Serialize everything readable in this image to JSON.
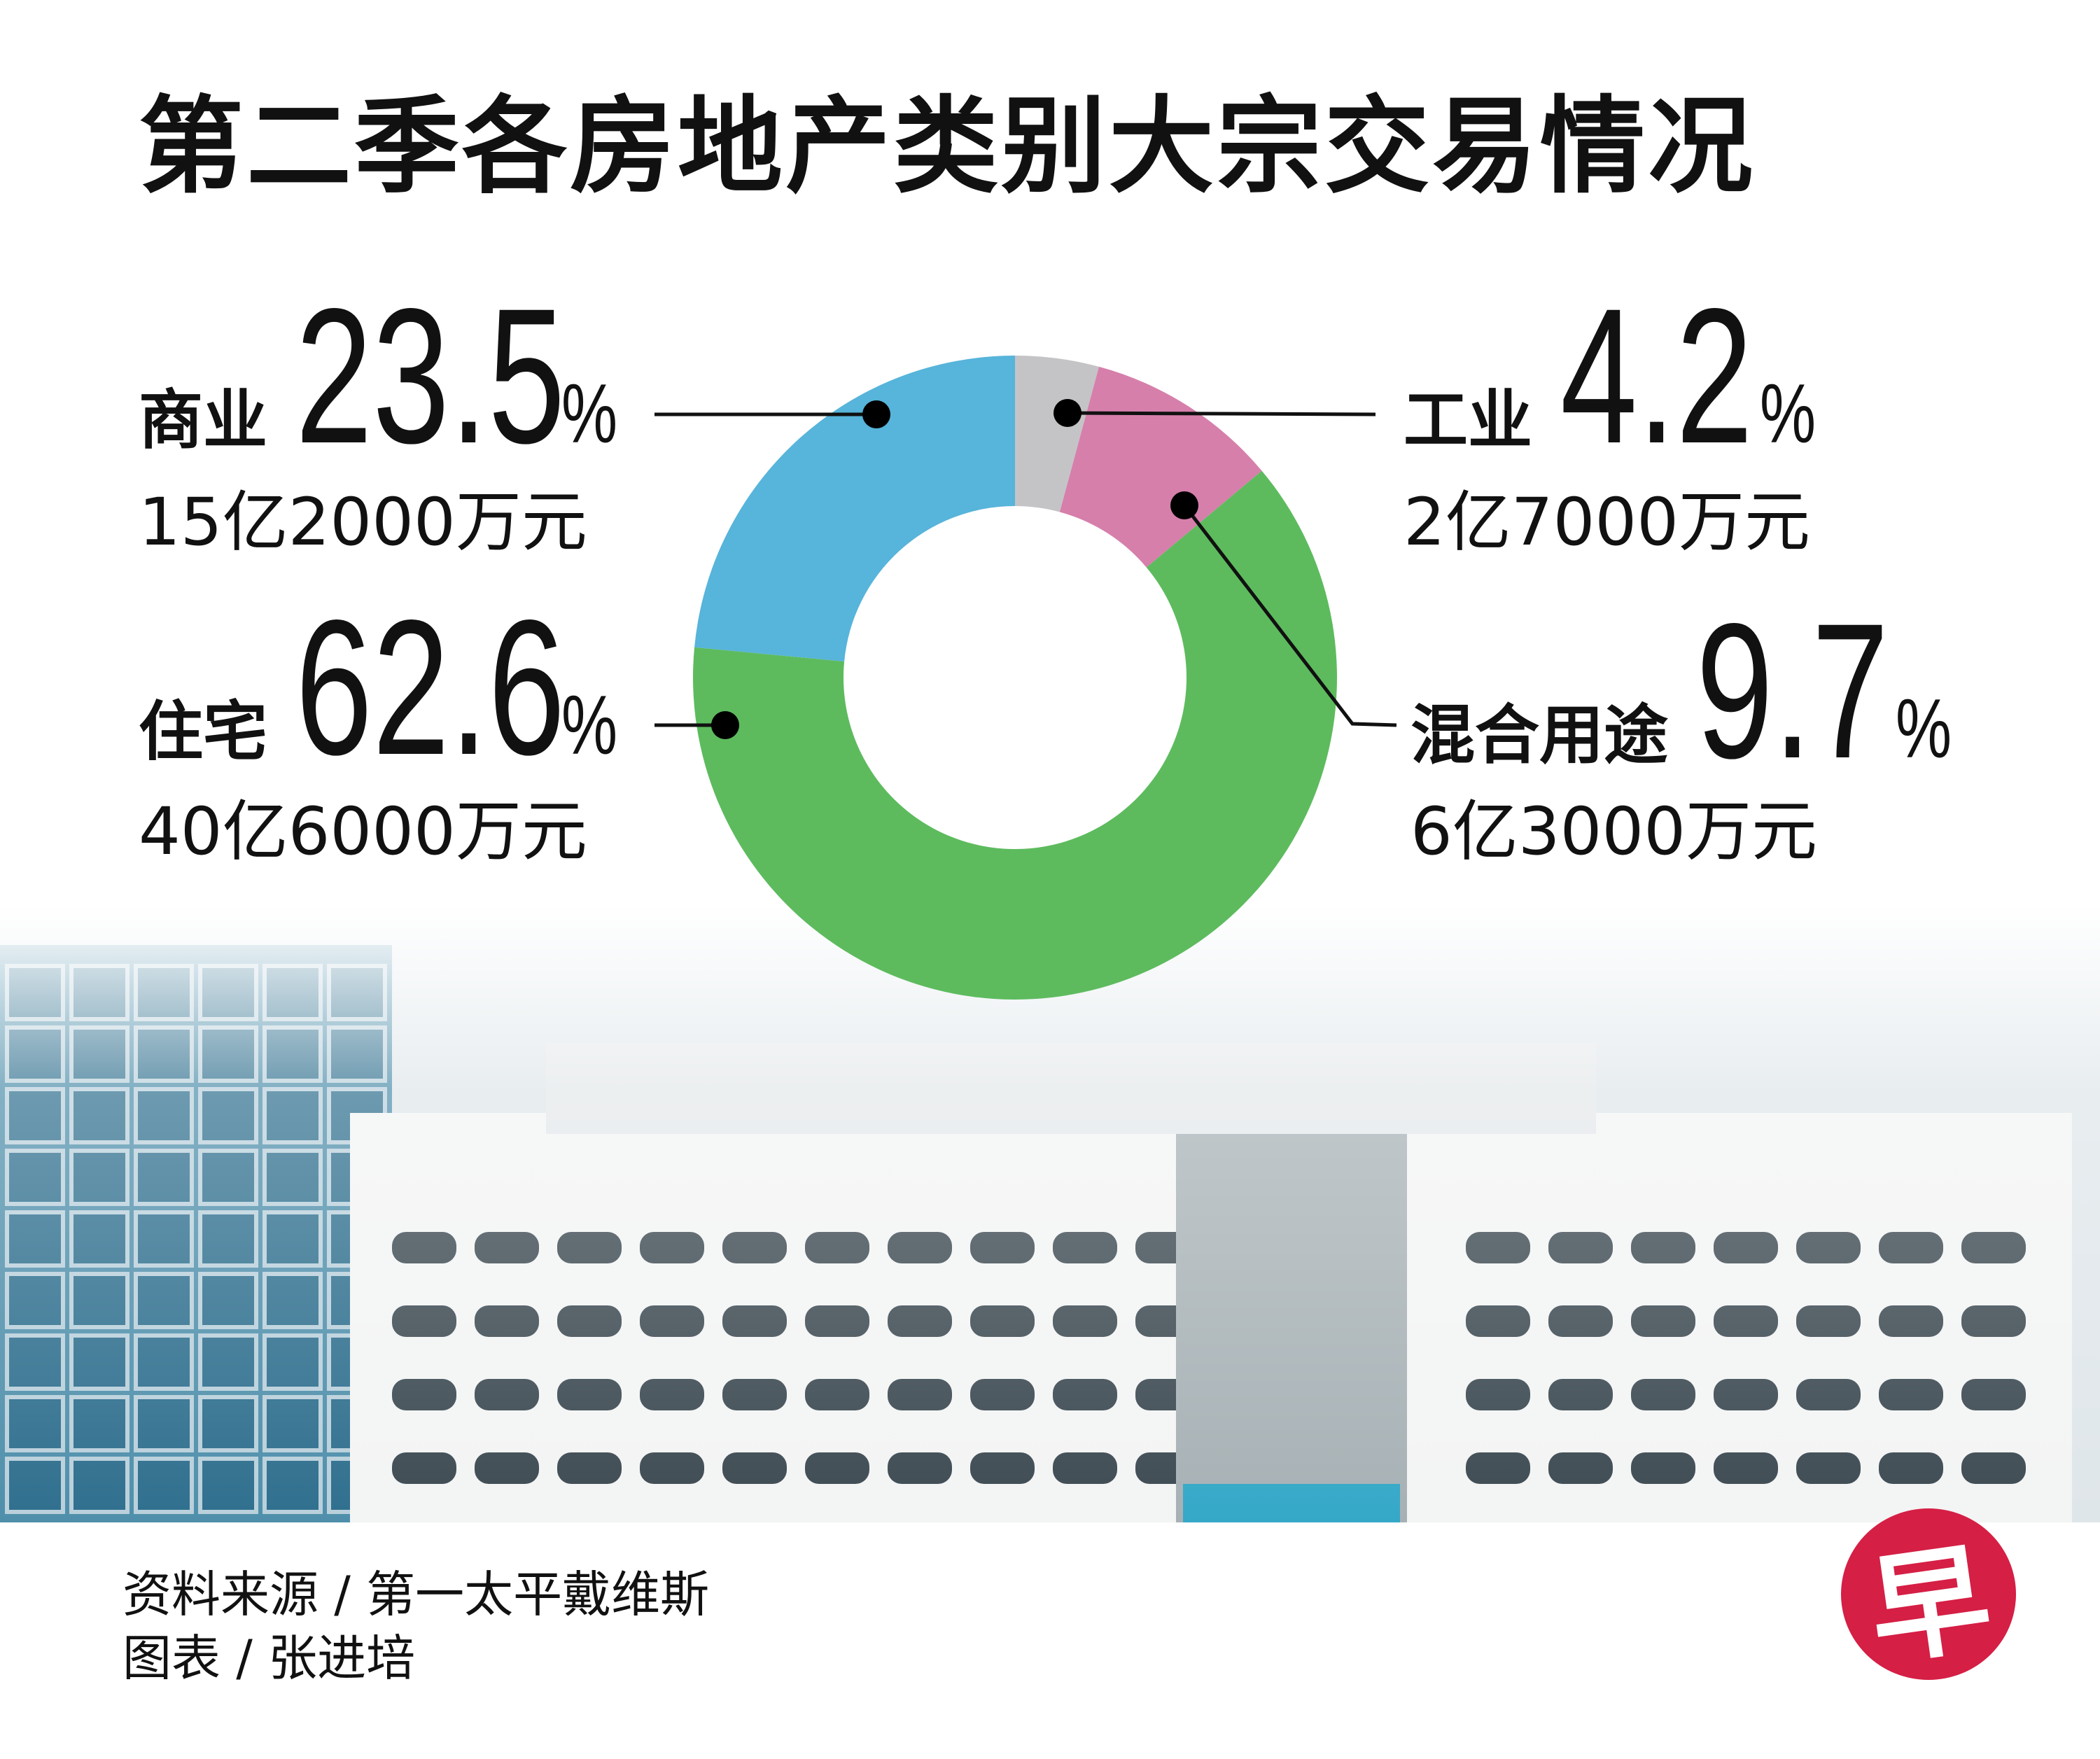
{
  "title": "第二季各房地产类别大宗交易情况",
  "chart_data": {
    "type": "pie",
    "variant": "donut",
    "title": "第二季各房地产类别大宗交易情况",
    "slices": [
      {
        "name": "工业",
        "value": 4.2,
        "label": "4.2",
        "amount": "2亿7000万元",
        "color": "#c4c4c6"
      },
      {
        "name": "混合用途",
        "value": 9.7,
        "label": "9.7",
        "amount": "6亿3000万元",
        "color": "#d67fab"
      },
      {
        "name": "住宅",
        "value": 62.6,
        "label": "62.6",
        "amount": "40亿6000万元",
        "color": "#5dbb5e"
      },
      {
        "name": "商业",
        "value": 23.5,
        "label": "23.5",
        "amount": "15亿2000万元",
        "color": "#57b4da"
      }
    ],
    "unit": "%"
  },
  "footer": {
    "source": "资料来源 / 第一太平戴维斯",
    "credit": "图表 / 张进培"
  },
  "logo": {
    "text": "早",
    "color": "#d51f45"
  }
}
